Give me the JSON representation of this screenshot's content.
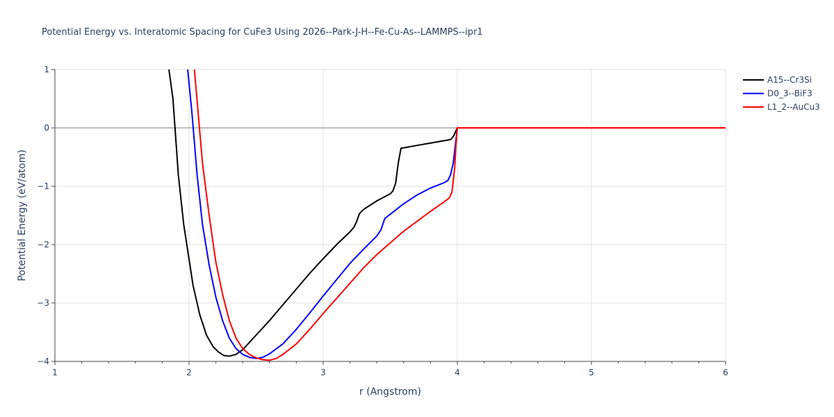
{
  "chart_data": {
    "type": "line",
    "title": "Potential Energy vs. Interatomic Spacing for CuFe3 Using 2026--Park-J-H--Fe-Cu-As--LAMMPS--ipr1",
    "xlabel": "r (Angstrom)",
    "ylabel": "Potential Energy (eV/atom)",
    "xlim": [
      1,
      6
    ],
    "ylim": [
      -4,
      1
    ],
    "xticks": [
      1,
      2,
      3,
      4,
      5,
      6
    ],
    "xtick_labels": [
      "1",
      "2",
      "3",
      "4",
      "5",
      "6"
    ],
    "yticks": [
      1,
      0,
      -1,
      -2,
      -3,
      -4
    ],
    "ytick_labels": [
      "1",
      "0",
      "−1",
      "−2",
      "−3",
      "−4"
    ],
    "grid": true,
    "legend_position": "top-right",
    "series": [
      {
        "name": "A15--Cr3Si",
        "color": "#000000",
        "points": [
          [
            1.85,
            1.0
          ],
          [
            1.88,
            0.5
          ],
          [
            1.92,
            -0.8
          ],
          [
            1.96,
            -1.65
          ],
          [
            1.99,
            -2.1
          ],
          [
            2.03,
            -2.7
          ],
          [
            2.08,
            -3.2
          ],
          [
            2.13,
            -3.55
          ],
          [
            2.18,
            -3.75
          ],
          [
            2.22,
            -3.84
          ],
          [
            2.26,
            -3.9
          ],
          [
            2.3,
            -3.91
          ],
          [
            2.35,
            -3.88
          ],
          [
            2.4,
            -3.8
          ],
          [
            2.46,
            -3.65
          ],
          [
            2.52,
            -3.5
          ],
          [
            2.6,
            -3.3
          ],
          [
            2.7,
            -3.03
          ],
          [
            2.8,
            -2.76
          ],
          [
            2.9,
            -2.49
          ],
          [
            3.0,
            -2.24
          ],
          [
            3.1,
            -2.0
          ],
          [
            3.2,
            -1.78
          ],
          [
            3.23,
            -1.7
          ],
          [
            3.25,
            -1.6
          ],
          [
            3.27,
            -1.47
          ],
          [
            3.3,
            -1.4
          ],
          [
            3.4,
            -1.25
          ],
          [
            3.5,
            -1.13
          ],
          [
            3.52,
            -1.08
          ],
          [
            3.54,
            -0.95
          ],
          [
            3.56,
            -0.6
          ],
          [
            3.58,
            -0.35
          ],
          [
            3.7,
            -0.3
          ],
          [
            3.8,
            -0.26
          ],
          [
            3.9,
            -0.22
          ],
          [
            3.95,
            -0.2
          ],
          [
            3.97,
            -0.15
          ],
          [
            3.99,
            -0.05
          ],
          [
            4.0,
            0.0
          ],
          [
            6.0,
            0.0
          ]
        ]
      },
      {
        "name": "D0_3--BiF3",
        "color": "#0000ff",
        "points": [
          [
            1.99,
            1.0
          ],
          [
            2.02,
            0.3
          ],
          [
            2.06,
            -0.8
          ],
          [
            2.1,
            -1.65
          ],
          [
            2.15,
            -2.35
          ],
          [
            2.2,
            -2.9
          ],
          [
            2.25,
            -3.3
          ],
          [
            2.3,
            -3.6
          ],
          [
            2.35,
            -3.78
          ],
          [
            2.4,
            -3.88
          ],
          [
            2.45,
            -3.93
          ],
          [
            2.5,
            -3.95
          ],
          [
            2.55,
            -3.93
          ],
          [
            2.6,
            -3.87
          ],
          [
            2.7,
            -3.7
          ],
          [
            2.8,
            -3.45
          ],
          [
            2.9,
            -3.17
          ],
          [
            3.0,
            -2.88
          ],
          [
            3.1,
            -2.6
          ],
          [
            3.2,
            -2.32
          ],
          [
            3.3,
            -2.08
          ],
          [
            3.4,
            -1.85
          ],
          [
            3.43,
            -1.75
          ],
          [
            3.46,
            -1.55
          ],
          [
            3.5,
            -1.48
          ],
          [
            3.6,
            -1.3
          ],
          [
            3.7,
            -1.15
          ],
          [
            3.8,
            -1.03
          ],
          [
            3.9,
            -0.94
          ],
          [
            3.93,
            -0.9
          ],
          [
            3.95,
            -0.8
          ],
          [
            3.97,
            -0.6
          ],
          [
            3.99,
            -0.2
          ],
          [
            4.0,
            0.0
          ],
          [
            6.0,
            0.0
          ]
        ]
      },
      {
        "name": "L1_2--AuCu3",
        "color": "#ff0000",
        "points": [
          [
            2.04,
            1.0
          ],
          [
            2.07,
            0.2
          ],
          [
            2.1,
            -0.6
          ],
          [
            2.15,
            -1.5
          ],
          [
            2.2,
            -2.3
          ],
          [
            2.25,
            -2.85
          ],
          [
            2.3,
            -3.3
          ],
          [
            2.35,
            -3.6
          ],
          [
            2.4,
            -3.78
          ],
          [
            2.45,
            -3.88
          ],
          [
            2.5,
            -3.94
          ],
          [
            2.55,
            -3.97
          ],
          [
            2.6,
            -3.98
          ],
          [
            2.65,
            -3.95
          ],
          [
            2.7,
            -3.88
          ],
          [
            2.8,
            -3.7
          ],
          [
            2.9,
            -3.45
          ],
          [
            3.0,
            -3.18
          ],
          [
            3.1,
            -2.92
          ],
          [
            3.2,
            -2.66
          ],
          [
            3.3,
            -2.4
          ],
          [
            3.4,
            -2.17
          ],
          [
            3.5,
            -1.97
          ],
          [
            3.6,
            -1.77
          ],
          [
            3.7,
            -1.6
          ],
          [
            3.8,
            -1.43
          ],
          [
            3.9,
            -1.27
          ],
          [
            3.94,
            -1.2
          ],
          [
            3.96,
            -1.1
          ],
          [
            3.98,
            -0.7
          ],
          [
            3.99,
            -0.3
          ],
          [
            4.0,
            0.0
          ],
          [
            6.0,
            0.0
          ]
        ]
      }
    ]
  }
}
